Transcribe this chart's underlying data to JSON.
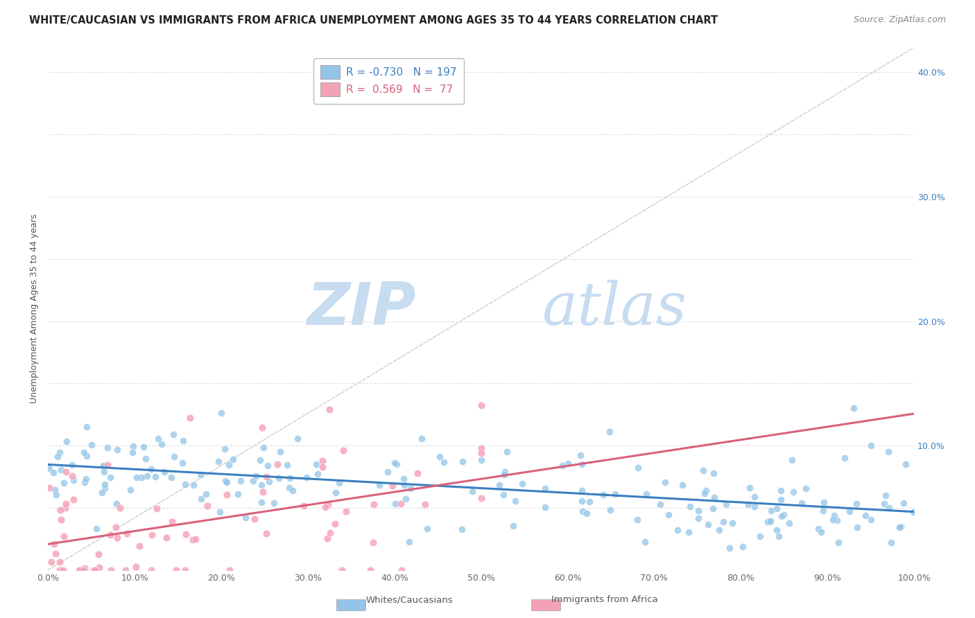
{
  "title": "WHITE/CAUCASIAN VS IMMIGRANTS FROM AFRICA UNEMPLOYMENT AMONG AGES 35 TO 44 YEARS CORRELATION CHART",
  "source": "Source: ZipAtlas.com",
  "ylabel": "Unemployment Among Ages 35 to 44 years",
  "xlim": [
    0.0,
    1.0
  ],
  "ylim": [
    0.0,
    0.42
  ],
  "xticks": [
    0.0,
    0.1,
    0.2,
    0.3,
    0.4,
    0.5,
    0.6,
    0.7,
    0.8,
    0.9,
    1.0
  ],
  "xticklabels": [
    "0.0%",
    "10.0%",
    "20.0%",
    "30.0%",
    "40.0%",
    "50.0%",
    "60.0%",
    "70.0%",
    "80.0%",
    "90.0%",
    "100.0%"
  ],
  "yticks": [
    0.0,
    0.05,
    0.1,
    0.15,
    0.2,
    0.25,
    0.3,
    0.35,
    0.4
  ],
  "yticklabels_right": [
    "",
    "",
    "10.0%",
    "",
    "20.0%",
    "",
    "30.0%",
    "",
    "40.0%"
  ],
  "blue_color": "#92C5E8",
  "pink_color": "#F4A0B5",
  "blue_line_color": "#3A7FC1",
  "pink_line_color": "#D9607A",
  "diagonal_color": "#CCCCCC",
  "legend_R_blue": "-0.730",
  "legend_N_blue": "197",
  "legend_R_pink": "0.569",
  "legend_N_pink": "77",
  "watermark_zip": "ZIP",
  "watermark_atlas": "atlas",
  "watermark_color": "#C8DCF0",
  "blue_label": "Whites/Caucasians",
  "pink_label": "Immigrants from Africa",
  "title_fontsize": 10.5,
  "source_fontsize": 9,
  "axis_fontsize": 9,
  "ylabel_fontsize": 9,
  "right_tick_color": "#3A7FC1"
}
